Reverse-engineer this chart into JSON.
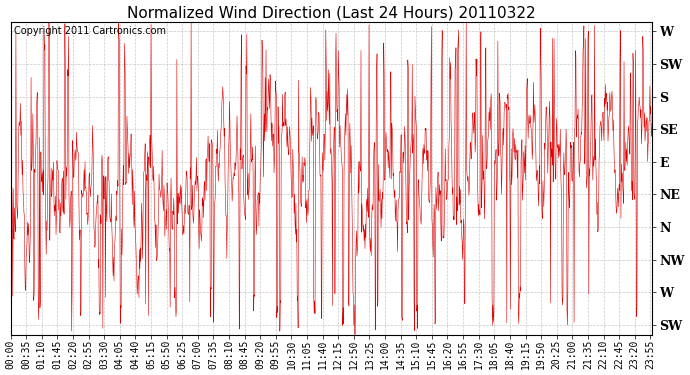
{
  "title": "Normalized Wind Direction (Last 24 Hours) 20110322",
  "copyright_text": "Copyright 2011 Cartronics.com",
  "line_color": "#dd0000",
  "bg_color": "#ffffff",
  "grid_color": "#bbbbbb",
  "ytick_labels": [
    "SW",
    "W",
    "NW",
    "N",
    "NE",
    "E",
    "SE",
    "S",
    "SW",
    "W"
  ],
  "ytick_values": [
    0,
    1,
    2,
    3,
    4,
    5,
    6,
    7,
    8,
    9
  ],
  "ylim": [
    -0.3,
    9.3
  ],
  "title_fontsize": 11,
  "copyright_fontsize": 7,
  "axis_fontsize": 7,
  "xlabel_rotation": 90,
  "xtick_interval_minutes": 35,
  "n_points": 1440,
  "yaxis_right": true
}
